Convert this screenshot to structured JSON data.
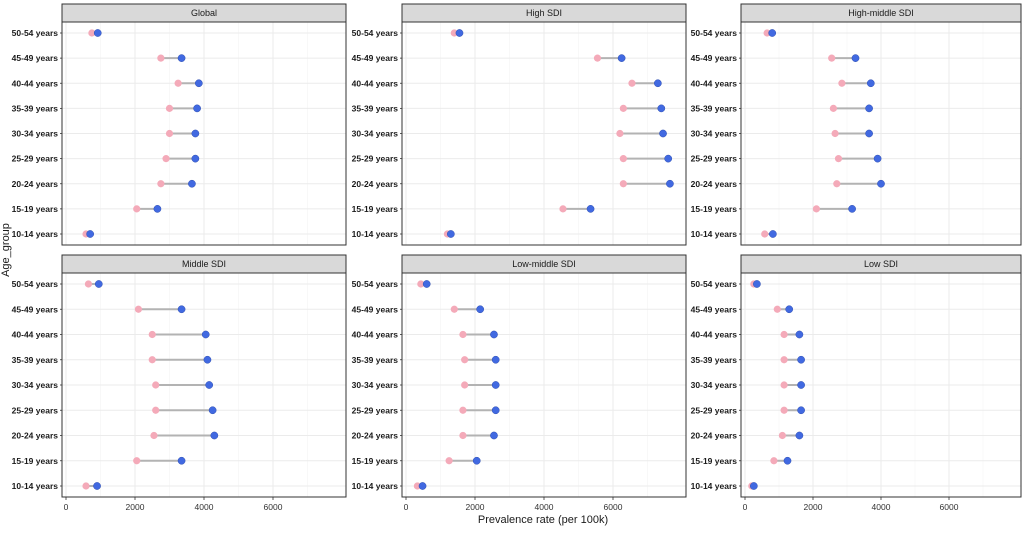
{
  "chart_data": {
    "type": "dumbbell",
    "xlabel": "Prevalence rate (per 100k)",
    "ylabel": "Age_group",
    "xlim": [
      0,
      8000
    ],
    "x_ticks": [
      0,
      2000,
      4000,
      6000
    ],
    "x_tick_labels": [
      "0",
      "2000",
      "4000",
      "6000"
    ],
    "categories": [
      "10-14 years",
      "15-19 years",
      "20-24 years",
      "25-29 years",
      "30-34 years",
      "35-39 years",
      "40-44 years",
      "45-49 years",
      "50-54 years"
    ],
    "grid": true,
    "colors": {
      "start": "#f4aab9",
      "end": "#4169e1",
      "segment": "#b3b3b3"
    },
    "panels": [
      {
        "title": "Global",
        "start": [
          580,
          2050,
          2750,
          2900,
          3000,
          3000,
          3250,
          2750,
          750
        ],
        "end": [
          700,
          2650,
          3650,
          3750,
          3750,
          3800,
          3850,
          3350,
          920
        ]
      },
      {
        "title": "High SDI",
        "start": [
          1200,
          4550,
          6300,
          6300,
          6200,
          6300,
          6550,
          5550,
          1400
        ],
        "end": [
          1300,
          5350,
          7650,
          7600,
          7450,
          7400,
          7300,
          6250,
          1550
        ]
      },
      {
        "title": "High-middle SDI",
        "start": [
          580,
          2100,
          2700,
          2750,
          2650,
          2600,
          2850,
          2550,
          650
        ],
        "end": [
          820,
          3150,
          4000,
          3900,
          3650,
          3650,
          3700,
          3250,
          800
        ]
      },
      {
        "title": "Middle SDI",
        "start": [
          580,
          2050,
          2550,
          2600,
          2600,
          2500,
          2500,
          2100,
          650
        ],
        "end": [
          900,
          3350,
          4300,
          4250,
          4150,
          4100,
          4050,
          3350,
          950
        ]
      },
      {
        "title": "Low-middle SDI",
        "start": [
          330,
          1250,
          1650,
          1650,
          1700,
          1700,
          1650,
          1400,
          430
        ],
        "end": [
          480,
          2050,
          2550,
          2600,
          2600,
          2600,
          2550,
          2150,
          600
        ]
      },
      {
        "title": "Low SDI",
        "start": [
          200,
          850,
          1100,
          1150,
          1150,
          1150,
          1150,
          950,
          260
        ],
        "end": [
          260,
          1250,
          1600,
          1650,
          1650,
          1650,
          1600,
          1300,
          350
        ]
      }
    ]
  }
}
